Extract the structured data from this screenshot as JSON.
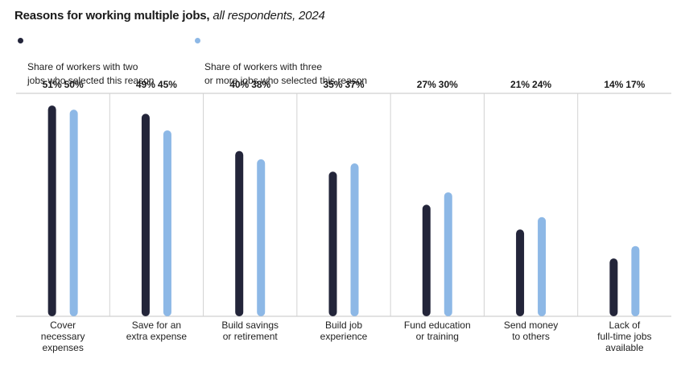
{
  "chart_data": {
    "type": "bar",
    "title": "Reasons for working multiple jobs,",
    "subtitle": "all respondents, 2024",
    "categories": [
      "Cover\nnecessary\nexpenses",
      "Save for an\nextra expense",
      "Build savings\nor retirement",
      "Build job\nexperience",
      "Fund education\nor training",
      "Send money\nto others",
      "Lack of\nfull-time jobs\navailable"
    ],
    "series": [
      {
        "name": "Share of workers with two\njobs who selected this reason",
        "color": "#23253a",
        "values": [
          51,
          49,
          40,
          35,
          27,
          21,
          14
        ],
        "labels": [
          "51%",
          "49%",
          "40%",
          "35%",
          "27%",
          "21%",
          "14%"
        ]
      },
      {
        "name": "Share of workers with three\nor more jobs who selected this reason",
        "color": "#8db8e6",
        "values": [
          50,
          45,
          38,
          37,
          30,
          24,
          17
        ],
        "labels": [
          "50%",
          "45%",
          "38%",
          "37%",
          "30%",
          "24%",
          "17%"
        ]
      }
    ],
    "ylim": [
      0,
      52
    ],
    "xlabel": "",
    "ylabel": "",
    "grid": false
  }
}
